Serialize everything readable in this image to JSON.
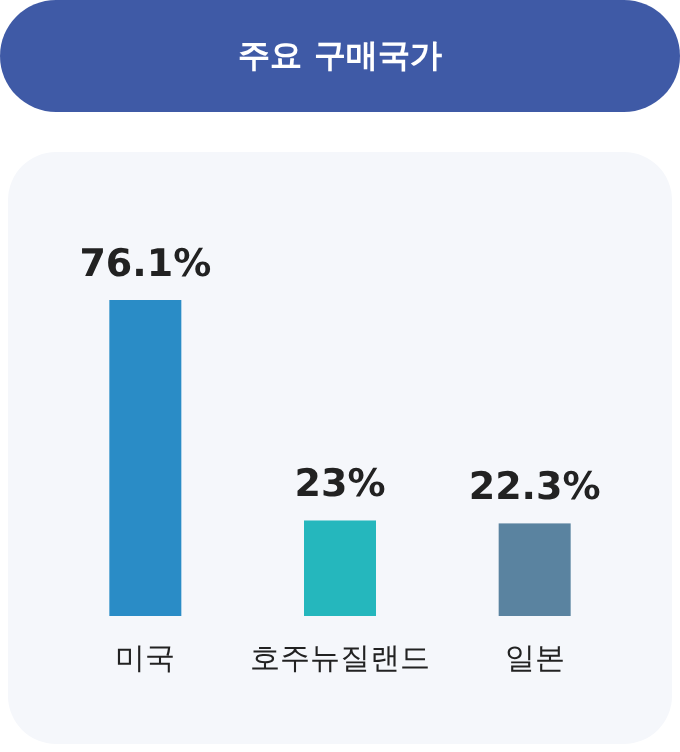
{
  "chart_data": {
    "type": "bar",
    "title": "주요 구매국가",
    "categories": [
      "미국",
      "호주뉴질랜드",
      "일본"
    ],
    "values": [
      76.1,
      23,
      22.3
    ],
    "colors": [
      "#2a8cc6",
      "#25b7bd",
      "#5a83a0"
    ],
    "value_labels": [
      "76.1%",
      "23%",
      "22.3%"
    ]
  }
}
